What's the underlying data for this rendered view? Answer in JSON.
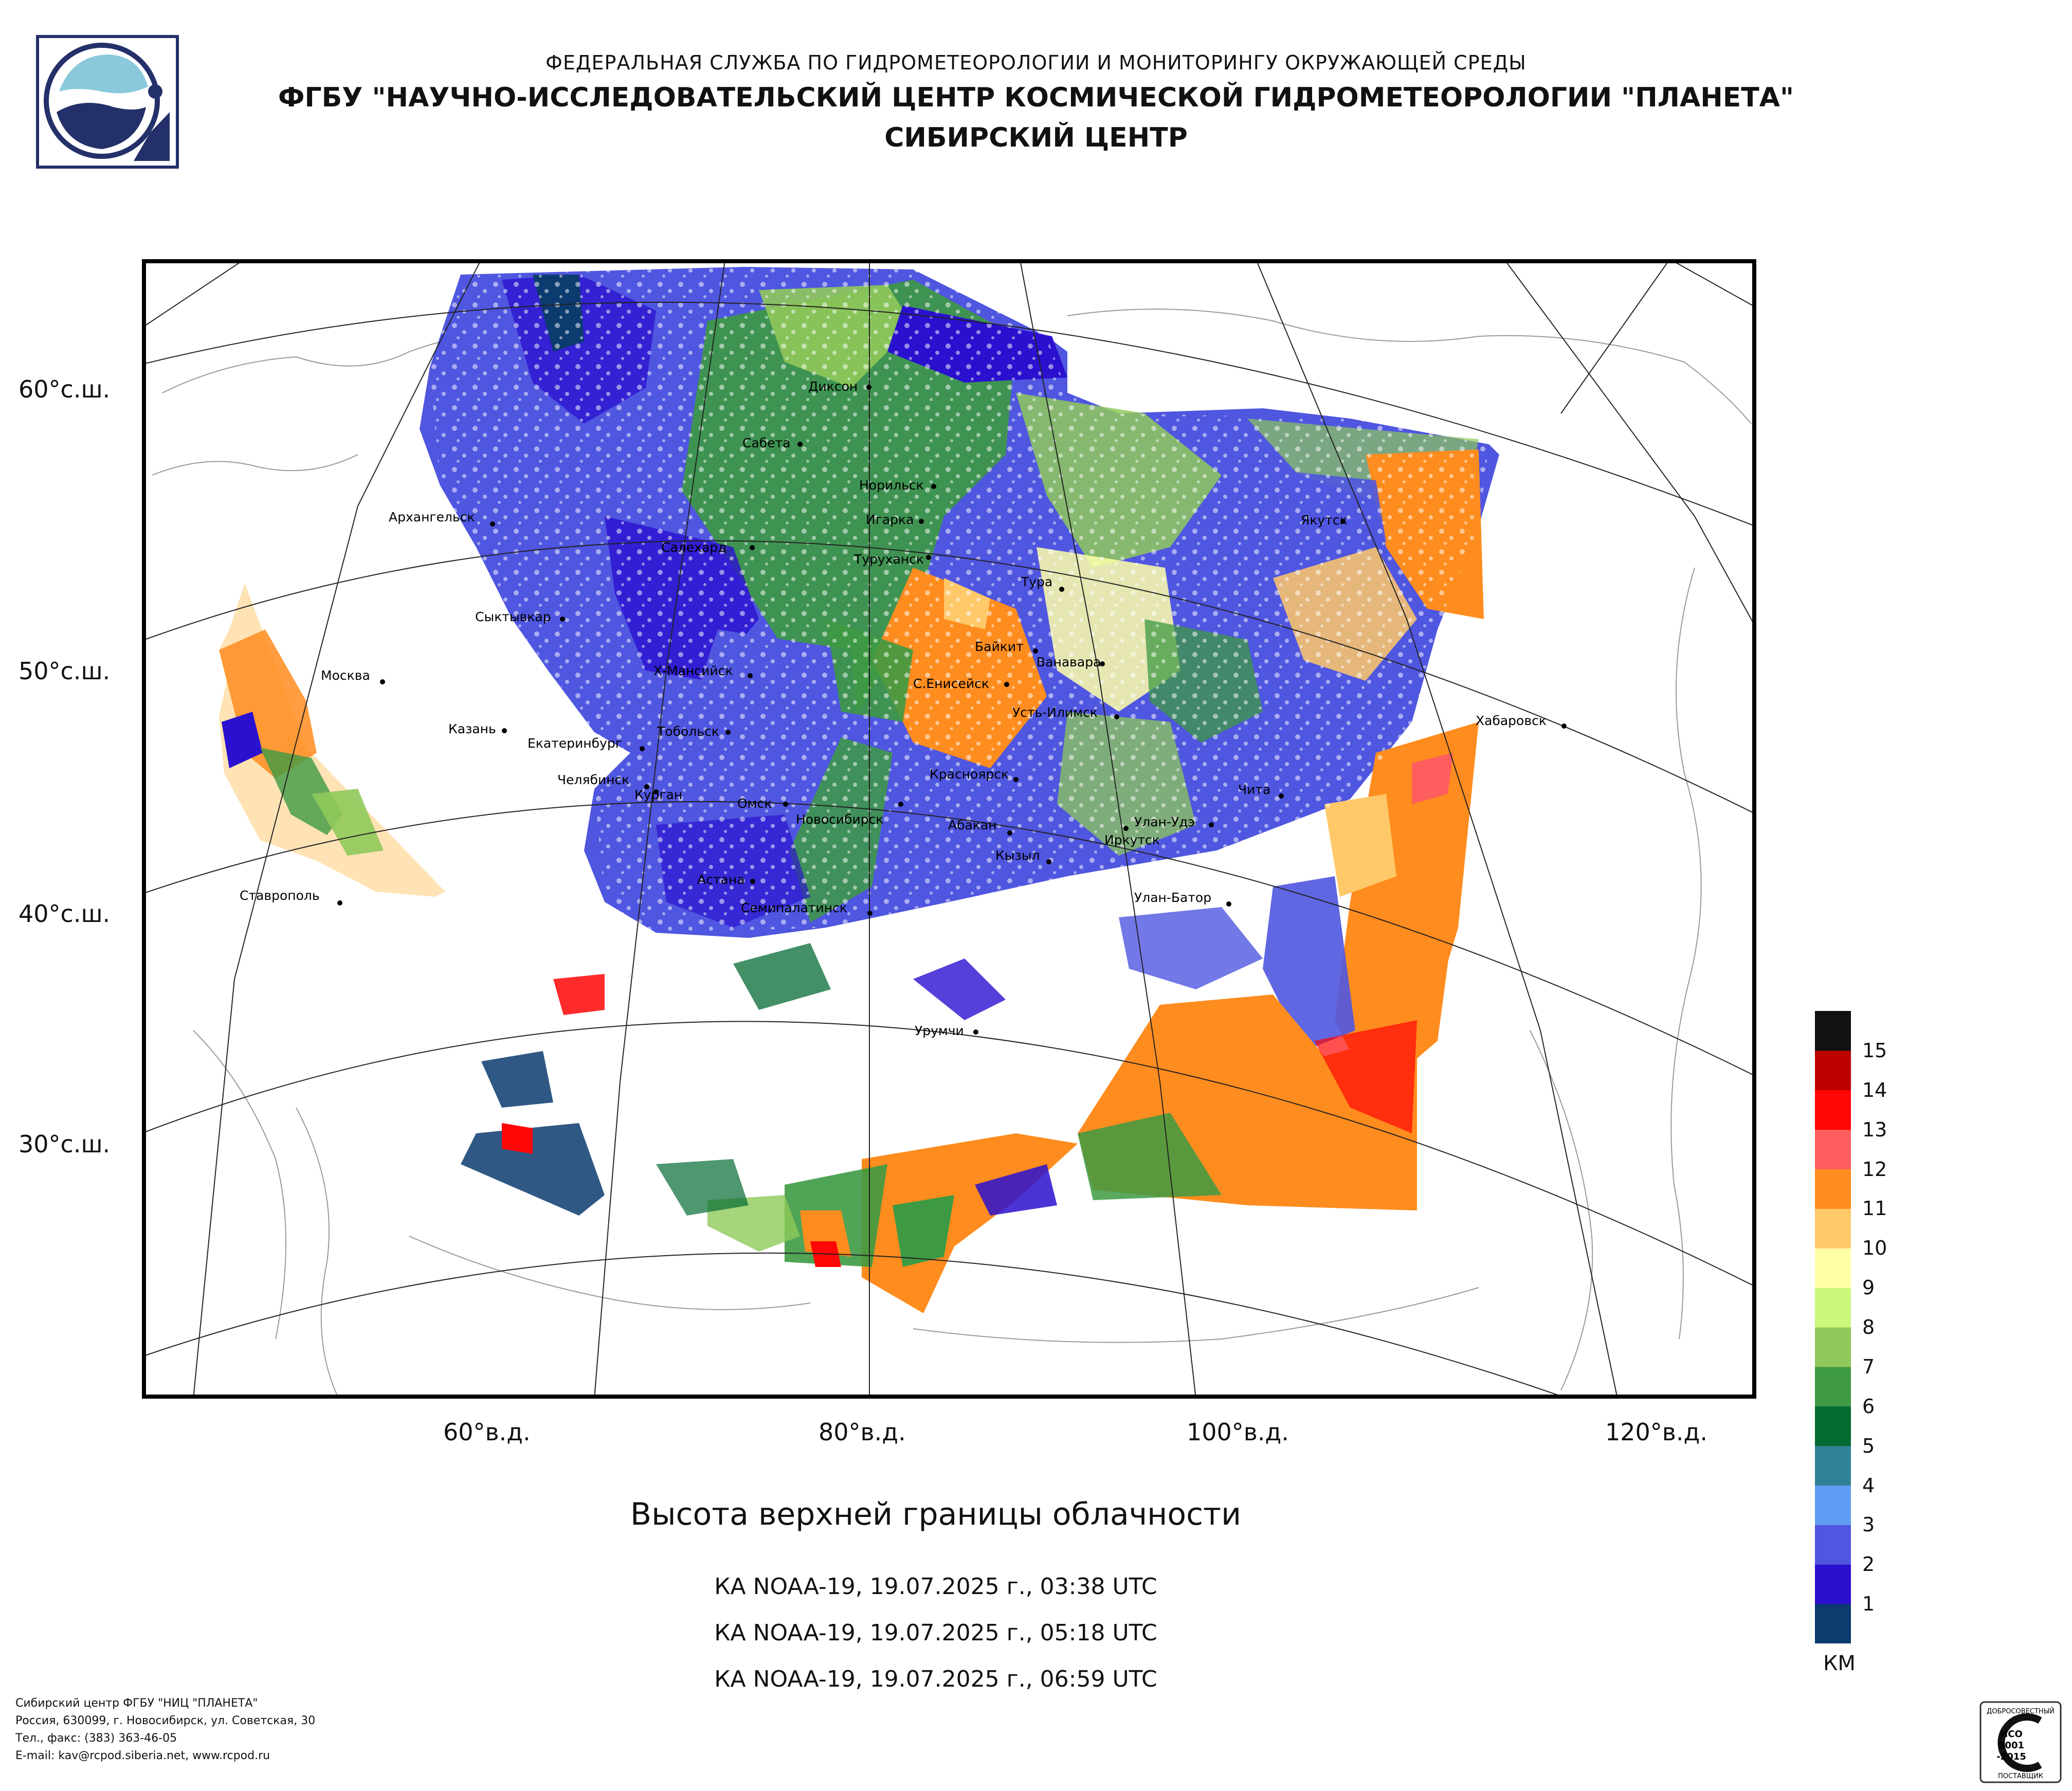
{
  "header": {
    "line1": "ФЕДЕРАЛЬНАЯ СЛУЖБА ПО ГИДРОМЕТЕОРОЛОГИИ И МОНИТОРИНГУ ОКРУЖАЮЩЕЙ СРЕДЫ",
    "line2": "ФГБУ \"НАУЧНО-ИССЛЕДОВАТЕЛЬСКИЙ ЦЕНТР КОСМИЧЕСКОЙ ГИДРОМЕТЕОРОЛОГИИ \"ПЛАНЕТА\"",
    "line3": "СИБИРСКИЙ ЦЕНТР",
    "logo_icon": "planeta-logo-icon"
  },
  "map": {
    "lat_labels": [
      "60°с.ш.",
      "50°с.ш.",
      "40°с.ш.",
      "30°с.ш."
    ],
    "lon_labels": [
      "60°в.д.",
      "80°в.д.",
      "100°в.д.",
      "120°в.д."
    ],
    "cities": [
      "Диксон",
      "Сабета",
      "Норильск",
      "Игарка",
      "Салехард",
      "Туруханск",
      "Архангельск",
      "Тура",
      "Якутск",
      "Сыктывкар",
      "Байкит",
      "Ванавара",
      "Х-Мансийск",
      "С.Енисейск",
      "Москва",
      "Усть-Илимск",
      "Казань",
      "Тобольск",
      "Екатеринбург",
      "Хабаровск",
      "Челябинск",
      "Курган",
      "Красноярск",
      "Омск",
      "Чита",
      "Новосибирск",
      "Абакан",
      "Улан-Удэ",
      "Иркутск",
      "Кызыл",
      "Астана",
      "Ставрополь",
      "Улан-Батор",
      "Семипалатинск",
      "Урумчи"
    ]
  },
  "product": {
    "title": "Высота верхней границы облачности",
    "passes": [
      "КА NOAA-19, 19.07.2025 г., 03:38 UTC",
      "КА NOAA-19, 19.07.2025 г., 05:18 UTC",
      "КА NOAA-19, 19.07.2025 г., 06:59 UTC"
    ]
  },
  "legend": {
    "unit": "КМ",
    "levels": [
      "1",
      "2",
      "3",
      "4",
      "5",
      "6",
      "7",
      "8",
      "9",
      "10",
      "11",
      "12",
      "13",
      "14",
      "15"
    ],
    "colors": [
      "#0b3b6f",
      "#2a10cf",
      "#4f56e0",
      "#5f9cf4",
      "#2f8296",
      "#046b33",
      "#3d9a43",
      "#8fc95a",
      "#cdf77a",
      "#ffffa8",
      "#ffc869",
      "#ff8c1e",
      "#ff5e5e",
      "#ff0606",
      "#bd0000",
      "#111111"
    ]
  },
  "footer": {
    "line1": "Сибирский центр ФГБУ \"НИЦ \"ПЛАНЕТА\"",
    "line2": "Россия, 630099, г. Новосибирск, ул. Советская, 30",
    "line3": "Тел., факс: (383) 363-46-05",
    "line4": "E-mail: kav@rcpod.siberia.net, www.rcpod.ru",
    "cert_top": "ДОБРОСОВЕСТНЫЙ",
    "cert_mid1": "ИСО",
    "cert_mid2": "9001",
    "cert_mid3": "-2015",
    "cert_bottom": "ПОСТАВЩИК"
  }
}
